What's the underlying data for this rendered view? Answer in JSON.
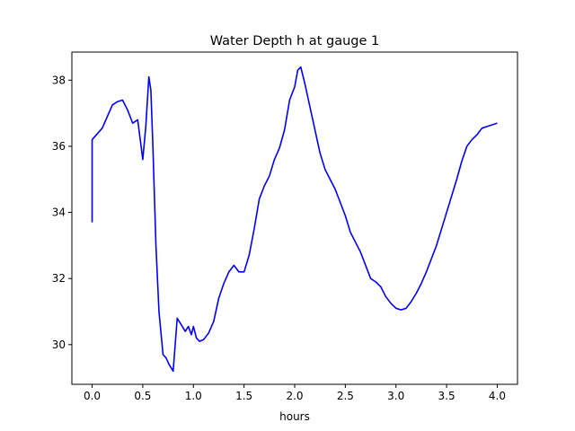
{
  "chart_data": {
    "type": "line",
    "title": "Water Depth h at gauge 1",
    "xlabel": "hours",
    "ylabel": "",
    "xlim": [
      -0.2,
      4.2
    ],
    "ylim": [
      28.8,
      38.85
    ],
    "xticks": [
      0.0,
      0.5,
      1.0,
      1.5,
      2.0,
      2.5,
      3.0,
      3.5,
      4.0
    ],
    "xtick_labels": [
      "0.0",
      "0.5",
      "1.0",
      "1.5",
      "2.0",
      "2.5",
      "3.0",
      "3.5",
      "4.0"
    ],
    "yticks": [
      30,
      32,
      34,
      36,
      38
    ],
    "ytick_labels": [
      "30",
      "32",
      "34",
      "36",
      "38"
    ],
    "grid": false,
    "legend": "none",
    "series": [
      {
        "color": "#0000ff",
        "x": [
          0.0,
          0.0,
          0.1,
          0.15,
          0.2,
          0.25,
          0.3,
          0.35,
          0.4,
          0.45,
          0.5,
          0.53,
          0.56,
          0.58,
          0.6,
          0.63,
          0.66,
          0.7,
          0.73,
          0.76,
          0.8,
          0.84,
          0.88,
          0.92,
          0.95,
          0.98,
          1.0,
          1.03,
          1.06,
          1.1,
          1.15,
          1.2,
          1.25,
          1.3,
          1.35,
          1.4,
          1.45,
          1.5,
          1.55,
          1.6,
          1.65,
          1.7,
          1.75,
          1.8,
          1.85,
          1.9,
          1.95,
          2.0,
          2.03,
          2.06,
          2.08,
          2.1,
          2.15,
          2.2,
          2.25,
          2.3,
          2.35,
          2.4,
          2.45,
          2.5,
          2.55,
          2.6,
          2.65,
          2.7,
          2.75,
          2.8,
          2.85,
          2.9,
          2.95,
          3.0,
          3.05,
          3.1,
          3.15,
          3.2,
          3.25,
          3.3,
          3.35,
          3.4,
          3.45,
          3.5,
          3.55,
          3.6,
          3.65,
          3.7,
          3.75,
          3.8,
          3.85,
          3.9,
          3.95,
          4.0
        ],
        "y": [
          33.7,
          36.2,
          36.55,
          36.9,
          37.25,
          37.35,
          37.4,
          37.1,
          36.7,
          36.8,
          35.6,
          36.6,
          38.1,
          37.7,
          36.0,
          33.0,
          31.0,
          29.7,
          29.6,
          29.4,
          29.2,
          30.8,
          30.6,
          30.4,
          30.55,
          30.3,
          30.55,
          30.2,
          30.1,
          30.15,
          30.35,
          30.7,
          31.4,
          31.85,
          32.2,
          32.4,
          32.2,
          32.2,
          32.7,
          33.5,
          34.4,
          34.8,
          35.1,
          35.6,
          35.95,
          36.5,
          37.4,
          37.8,
          38.3,
          38.4,
          38.15,
          37.9,
          37.2,
          36.5,
          35.8,
          35.3,
          35.0,
          34.7,
          34.3,
          33.9,
          33.4,
          33.1,
          32.8,
          32.4,
          32.0,
          31.9,
          31.75,
          31.45,
          31.25,
          31.1,
          31.05,
          31.1,
          31.3,
          31.55,
          31.85,
          32.2,
          32.6,
          33.0,
          33.5,
          34.0,
          34.5,
          35.0,
          35.55,
          36.0,
          36.2,
          36.35,
          36.55,
          36.6,
          36.65,
          36.7
        ]
      }
    ]
  }
}
